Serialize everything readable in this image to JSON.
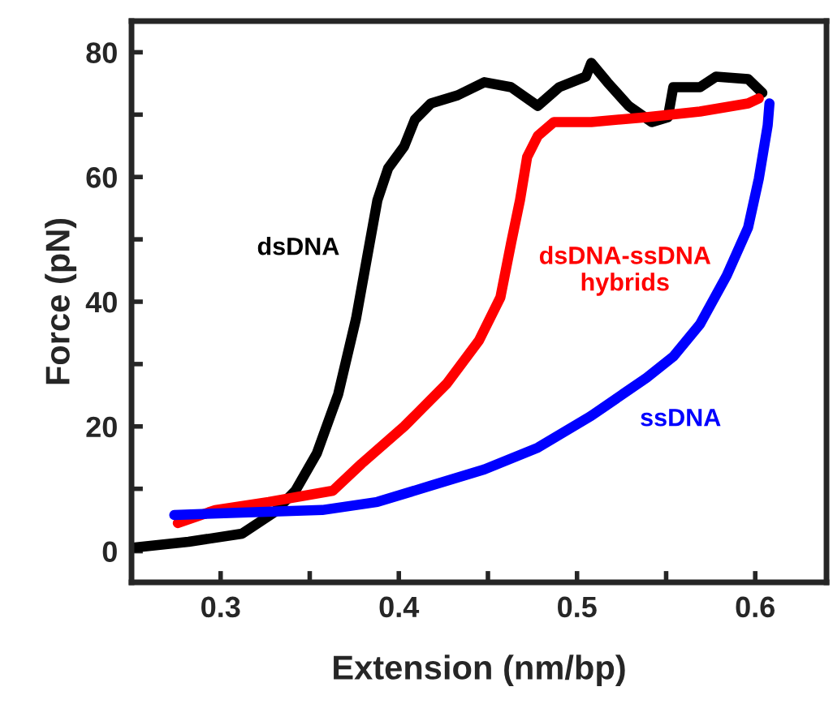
{
  "chart_data": {
    "type": "line",
    "xlabel": "Extension (nm/bp)",
    "ylabel": "Force (pN)",
    "xlim": [
      0.25,
      0.64
    ],
    "ylim": [
      -5,
      85
    ],
    "xticks": [
      0.3,
      {
        "value": 0.35,
        "label": null
      },
      0.4,
      {
        "value": 0.45,
        "label": null
      },
      0.5,
      {
        "value": 0.55,
        "label": null
      },
      0.6
    ],
    "yticks": [
      0,
      {
        "value": 10,
        "label": null
      },
      20,
      {
        "value": 30,
        "label": null
      },
      40,
      {
        "value": 50,
        "label": null
      },
      60,
      {
        "value": 70,
        "label": null
      },
      80
    ],
    "grid": false,
    "legend": false,
    "marker": "none",
    "line_style": "solid",
    "series": [
      {
        "name": "dsDNA",
        "color": "#000000",
        "x": [
          0.252,
          0.282,
          0.312,
          0.33,
          0.342,
          0.354,
          0.366,
          0.376,
          0.382,
          0.388,
          0.394,
          0.403,
          0.409,
          0.418,
          0.433,
          0.448,
          0.463,
          0.478,
          0.49,
          0.505,
          0.508,
          0.517,
          0.529,
          0.542,
          0.551,
          0.554,
          0.569,
          0.578,
          0.596,
          0.604
        ],
        "values": [
          0.6,
          1.5,
          2.8,
          6.2,
          9.7,
          15.7,
          25.2,
          37.3,
          46.8,
          56.3,
          61.4,
          64.9,
          69.2,
          71.8,
          73.1,
          75.2,
          74.4,
          71.4,
          74.4,
          76.1,
          78.3,
          75.2,
          71.4,
          68.8,
          69.6,
          74.4,
          74.4,
          76.1,
          75.7,
          73.5
        ]
      },
      {
        "name": "dsDNA-ssDNA\nhybrids",
        "color": "#ff0000",
        "x": [
          0.276,
          0.297,
          0.327,
          0.363,
          0.379,
          0.403,
          0.427,
          0.445,
          0.457,
          0.463,
          0.468,
          0.472,
          0.478,
          0.487,
          0.508,
          0.539,
          0.569,
          0.596,
          0.602
        ],
        "values": [
          4.5,
          6.6,
          7.9,
          9.7,
          14.0,
          20.0,
          26.9,
          33.8,
          40.7,
          49.4,
          56.3,
          63.2,
          66.6,
          68.8,
          68.8,
          69.6,
          70.5,
          71.8,
          72.6
        ]
      },
      {
        "name": "ssDNA",
        "color": "#0000ff",
        "x": [
          0.274,
          0.312,
          0.357,
          0.388,
          0.418,
          0.448,
          0.478,
          0.508,
          0.539,
          0.554,
          0.569,
          0.584,
          0.596,
          0.602,
          0.607,
          0.608
        ],
        "values": [
          5.8,
          6.2,
          6.6,
          7.9,
          10.5,
          13.1,
          16.6,
          21.7,
          27.8,
          31.2,
          36.4,
          44.2,
          51.9,
          59.7,
          68.3,
          71.8
        ]
      }
    ]
  }
}
